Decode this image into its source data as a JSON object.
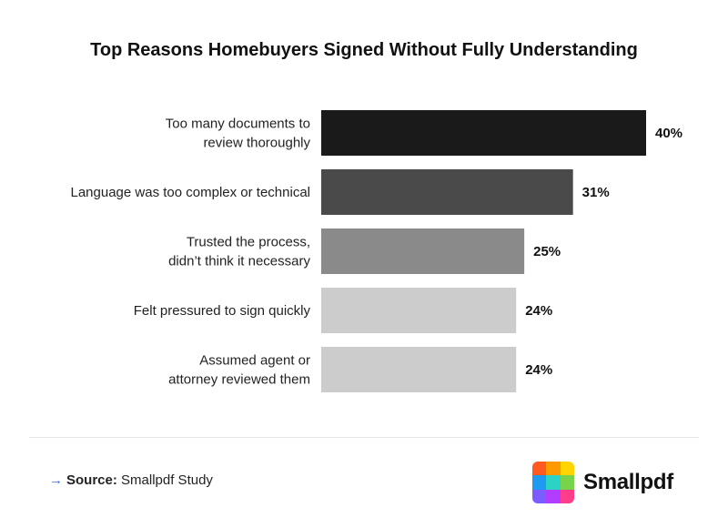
{
  "chart_data": {
    "type": "bar",
    "orientation": "horizontal",
    "title": "Top Reasons Homebuyers Signed Without Fully Understanding",
    "categories": [
      [
        "Too many documents to",
        "review thoroughly"
      ],
      [
        "Language was too complex or technical"
      ],
      [
        "Trusted the process,",
        "didn’t think it necessary"
      ],
      [
        "Felt pressured to sign quickly"
      ],
      [
        "Assumed agent or",
        "attorney reviewed them"
      ]
    ],
    "values": [
      40,
      31,
      25,
      24,
      24
    ],
    "value_labels": [
      "40%",
      "31%",
      "25%",
      "24%",
      "24%"
    ],
    "bar_colors": [
      "#1a1a1a",
      "#4a4a4a",
      "#8a8a8a",
      "#cccccc",
      "#cccccc"
    ],
    "xlim": [
      0,
      40
    ],
    "grid": false,
    "legend": "none"
  },
  "footer": {
    "source_arrow": "→",
    "source_label": "Source:",
    "source_text": "Smallpdf Study"
  },
  "logo": {
    "text": "Smallpdf",
    "colors": [
      "#ff5a1f",
      "#ff9900",
      "#ffd400",
      "#1e9bf0",
      "#2cd3c4",
      "#79d34a",
      "#7b5cff",
      "#b23dff",
      "#ff3d8b"
    ]
  }
}
